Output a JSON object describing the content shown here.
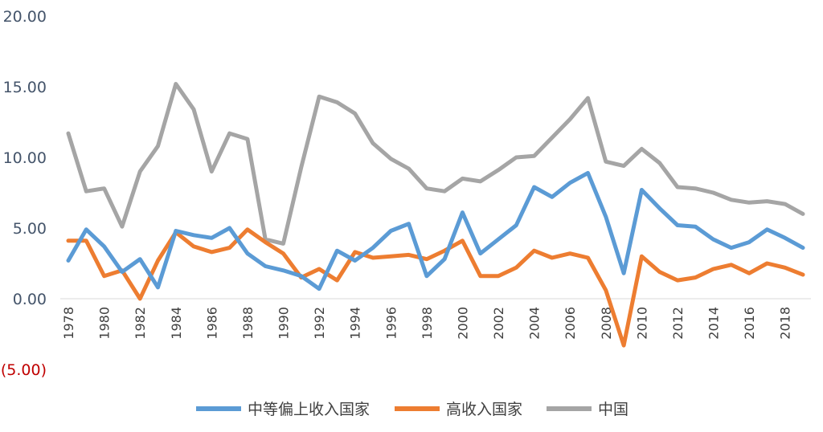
{
  "chart_data": {
    "type": "line",
    "title": "",
    "xlabel": "",
    "ylabel": "",
    "ylim": [
      -5,
      20
    ],
    "yticks": [
      "(5.00)",
      "0.00",
      "5.00",
      "10.00",
      "15.00",
      "20.00"
    ],
    "ytick_values": [
      -5,
      0,
      5,
      10,
      15,
      20
    ],
    "negative_tick_color": "#c00000",
    "tick_color": "#44546a",
    "grid": false,
    "legend_position": "bottom",
    "x": [
      1978,
      1979,
      1980,
      1981,
      1982,
      1983,
      1984,
      1985,
      1986,
      1987,
      1988,
      1989,
      1990,
      1991,
      1992,
      1993,
      1994,
      1995,
      1996,
      1997,
      1998,
      1999,
      2000,
      2001,
      2002,
      2003,
      2004,
      2005,
      2006,
      2007,
      2008,
      2009,
      2010,
      2011,
      2012,
      2013,
      2014,
      2015,
      2016,
      2017,
      2018,
      2019
    ],
    "xtick_labels": [
      "1978",
      "1980",
      "1982",
      "1984",
      "1986",
      "1988",
      "1990",
      "1992",
      "1994",
      "1996",
      "1998",
      "2000",
      "2002",
      "2004",
      "2006",
      "2008",
      "2010",
      "2012",
      "2014",
      "2016",
      "2018"
    ],
    "series": [
      {
        "name": "中等偏上收入国家",
        "color": "#5b9bd5",
        "values": [
          2.7,
          4.9,
          3.7,
          1.9,
          2.8,
          0.8,
          4.8,
          4.5,
          4.3,
          5.0,
          3.2,
          2.3,
          2.0,
          1.6,
          0.7,
          3.4,
          2.7,
          3.6,
          4.8,
          5.3,
          1.6,
          2.8,
          6.1,
          3.2,
          4.2,
          5.2,
          7.9,
          7.2,
          8.2,
          8.9,
          5.8,
          1.8,
          7.7,
          6.4,
          5.2,
          5.1,
          4.2,
          3.6,
          4.0,
          4.9,
          4.3,
          3.6
        ]
      },
      {
        "name": "高收入国家",
        "color": "#ed7d31",
        "values": [
          4.1,
          4.1,
          1.6,
          2.0,
          0.0,
          2.7,
          4.7,
          3.7,
          3.3,
          3.6,
          4.9,
          4.0,
          3.2,
          1.5,
          2.1,
          1.3,
          3.3,
          2.9,
          3.0,
          3.1,
          2.8,
          3.4,
          4.1,
          1.6,
          1.6,
          2.2,
          3.4,
          2.9,
          3.2,
          2.9,
          0.6,
          -3.3,
          3.0,
          1.9,
          1.3,
          1.5,
          2.1,
          2.4,
          1.8,
          2.5,
          2.2,
          1.7
        ]
      },
      {
        "name": "中国",
        "color": "#a5a5a5",
        "values": [
          11.7,
          7.6,
          7.8,
          5.1,
          9.0,
          10.8,
          15.2,
          13.4,
          9.0,
          11.7,
          11.3,
          4.2,
          3.9,
          9.3,
          14.3,
          13.9,
          13.1,
          11.0,
          9.9,
          9.2,
          7.8,
          7.6,
          8.5,
          8.3,
          9.1,
          10.0,
          10.1,
          11.4,
          12.7,
          14.2,
          9.7,
          9.4,
          10.6,
          9.6,
          7.9,
          7.8,
          7.5,
          7.0,
          6.8,
          6.9,
          6.7,
          6.0
        ]
      }
    ]
  }
}
